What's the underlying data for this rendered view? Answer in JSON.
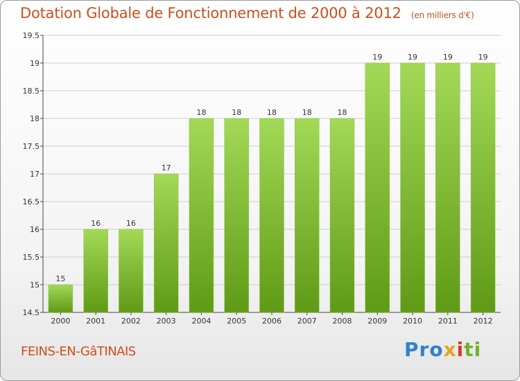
{
  "title": "Dotation Globale de Fonctionnement de 2000 à 2012",
  "subtitle": "(en milliers d'€)",
  "town": "FEINS-EN-GâTINAIS",
  "brand": {
    "p1": "Pro",
    "p2": "x",
    "p3": "i",
    "p4": "ti"
  },
  "colors": {
    "title": "#cc4f1a",
    "bar_light": "#a3d957",
    "bar_dark": "#5f9a16",
    "grid": "#cccccc"
  },
  "chart_data": {
    "type": "bar",
    "title": "Dotation Globale de Fonctionnement de 2000 à 2012",
    "subtitle": "(en milliers d'€)",
    "xlabel": "",
    "ylabel": "",
    "categories": [
      "2000",
      "2001",
      "2002",
      "2003",
      "2004",
      "2005",
      "2006",
      "2007",
      "2008",
      "2009",
      "2010",
      "2011",
      "2012"
    ],
    "values": [
      15,
      16,
      16,
      17,
      18,
      18,
      18,
      18,
      18,
      19,
      19,
      19,
      19
    ],
    "data_labels": [
      "15",
      "16",
      "16",
      "17",
      "18",
      "18",
      "18",
      "18",
      "18",
      "19",
      "19",
      "19",
      "19"
    ],
    "ylim": [
      14.5,
      19.5
    ],
    "yticks": [
      14.5,
      15,
      15.5,
      16,
      16.5,
      17,
      17.5,
      18,
      18.5,
      19,
      19.5
    ],
    "ytick_labels": [
      "14.5",
      "15",
      "15.5",
      "16",
      "16.5",
      "17",
      "17.5",
      "18",
      "18.5",
      "19",
      "19.5"
    ],
    "grid": true
  }
}
